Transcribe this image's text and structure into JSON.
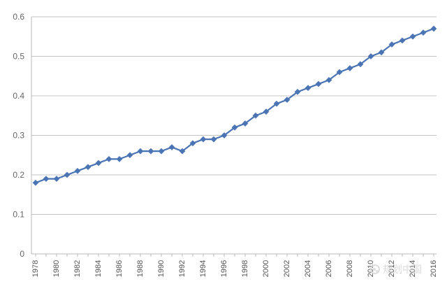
{
  "chart_data": {
    "type": "line",
    "title": "",
    "xlabel": "",
    "ylabel": "",
    "x": [
      1978,
      1979,
      1980,
      1981,
      1982,
      1983,
      1984,
      1985,
      1986,
      1987,
      1988,
      1989,
      1990,
      1991,
      1992,
      1993,
      1994,
      1995,
      1996,
      1997,
      1998,
      1999,
      2000,
      2001,
      2002,
      2003,
      2004,
      2005,
      2006,
      2007,
      2008,
      2009,
      2010,
      2011,
      2012,
      2013,
      2014,
      2015,
      2016
    ],
    "x_tick_labels": [
      "1978",
      "1980",
      "1982",
      "1984",
      "1986",
      "1988",
      "1990",
      "1992",
      "1994",
      "1996",
      "1998",
      "2000",
      "2002",
      "2004",
      "2006",
      "2008",
      "2010",
      "2012",
      "2014",
      "2016"
    ],
    "series": [
      {
        "values": [
          0.18,
          0.19,
          0.19,
          0.2,
          0.21,
          0.22,
          0.23,
          0.24,
          0.24,
          0.25,
          0.26,
          0.26,
          0.26,
          0.27,
          0.26,
          0.28,
          0.29,
          0.29,
          0.3,
          0.32,
          0.33,
          0.35,
          0.36,
          0.38,
          0.39,
          0.41,
          0.42,
          0.43,
          0.44,
          0.46,
          0.47,
          0.48,
          0.5,
          0.51,
          0.53,
          0.54,
          0.55,
          0.56,
          0.57
        ],
        "color": "#4a74b4"
      }
    ],
    "ylim": [
      0,
      0.6
    ],
    "y_ticks": [
      "0",
      "0.1",
      "0.2",
      "0.3",
      "0.4",
      "0.5",
      "0.6"
    ],
    "grid": true,
    "legend": "none"
  },
  "watermark": {
    "text": "规划中国"
  }
}
